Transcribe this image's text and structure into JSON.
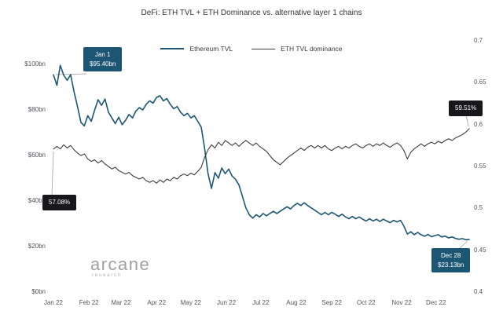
{
  "title": "DeFi: ETH TVL + ETH Dominance vs. alternative layer 1 chains",
  "watermark": {
    "brand": "arcane",
    "sub": "research"
  },
  "annotations": {
    "start_tvl": {
      "line1": "Jan 1",
      "line2": "$95.40bn",
      "color": "#1d5673"
    },
    "start_dominance": {
      "line1": "57.08%",
      "color": "#17171c"
    },
    "end_dominance": {
      "line1": "59.51%",
      "color": "#17171c"
    },
    "end_tvl": {
      "line1": "Dec 28",
      "line2": "$23.13bn",
      "color": "#1d5673"
    }
  },
  "chart_data": {
    "type": "line",
    "title": "DeFi: ETH TVL + ETH Dominance vs. alternative layer 1 chains",
    "grid": false,
    "legend_position": "top",
    "x_unit": "day of 2022 (points every 3 days, day 0 = Jan 1)",
    "x_ticks": [
      {
        "label": "Jan 22",
        "day": 0
      },
      {
        "label": "Feb 22",
        "day": 31
      },
      {
        "label": "Mar 22",
        "day": 59
      },
      {
        "label": "Apr 22",
        "day": 90
      },
      {
        "label": "May 22",
        "day": 120
      },
      {
        "label": "Jun 22",
        "day": 151
      },
      {
        "label": "Jul 22",
        "day": 181
      },
      {
        "label": "Aug 22",
        "day": 212
      },
      {
        "label": "Sep 22",
        "day": 243
      },
      {
        "label": "Oct 22",
        "day": 273
      },
      {
        "label": "Nov 22",
        "day": 304
      },
      {
        "label": "Dec 22",
        "day": 334
      }
    ],
    "y_left": {
      "lim": [
        0,
        100
      ],
      "ticks": [
        {
          "label": "$100bn",
          "value": 100
        },
        {
          "label": "$80bn",
          "value": 80
        },
        {
          "label": "$60bn",
          "value": 60
        },
        {
          "label": "$40bn",
          "value": 40
        },
        {
          "label": "$20bn",
          "value": 20
        },
        {
          "label": "$0bn",
          "value": 0
        }
      ]
    },
    "y_right": {
      "lim": [
        0.4,
        0.7
      ],
      "ticks": [
        {
          "label": "0.7",
          "value": 0.7
        },
        {
          "label": "0.65",
          "value": 0.65
        },
        {
          "label": "0.6",
          "value": 0.6
        },
        {
          "label": "0.55",
          "value": 0.55
        },
        {
          "label": "0.5",
          "value": 0.5
        },
        {
          "label": "0.45",
          "value": 0.45
        },
        {
          "label": "0.4",
          "value": 0.4
        }
      ]
    },
    "series": [
      {
        "name": "Ethereum TVL",
        "axis": "left",
        "color": "#1d5673",
        "x_step_days": 3,
        "values": [
          95.4,
          90.8,
          99.6,
          95.2,
          93.0,
          95.5,
          88.0,
          81.5,
          74.5,
          73.0,
          77.5,
          75.0,
          80.0,
          84.5,
          82.0,
          84.8,
          79.0,
          76.5,
          74.0,
          76.8,
          73.5,
          75.5,
          78.0,
          76.5,
          79.5,
          81.0,
          80.0,
          82.5,
          84.0,
          83.0,
          85.5,
          86.2,
          84.0,
          85.0,
          82.5,
          80.5,
          81.5,
          79.0,
          77.5,
          78.5,
          76.5,
          77.5,
          75.0,
          72.5,
          63.0,
          52.0,
          45.5,
          52.5,
          50.0,
          54.5,
          52.0,
          54.0,
          51.0,
          49.5,
          47.0,
          42.0,
          37.0,
          34.0,
          32.5,
          34.0,
          33.0,
          34.5,
          33.5,
          34.5,
          35.5,
          34.5,
          35.5,
          36.5,
          37.5,
          36.5,
          38.0,
          39.0,
          38.0,
          39.2,
          38.0,
          37.0,
          36.0,
          35.0,
          34.0,
          35.0,
          34.0,
          35.0,
          34.2,
          33.2,
          34.2,
          33.0,
          32.2,
          33.2,
          32.2,
          33.0,
          32.0,
          31.2,
          32.2,
          31.2,
          32.0,
          31.0,
          32.0,
          31.2,
          30.5,
          31.5,
          30.8,
          31.5,
          29.0,
          25.5,
          26.5,
          25.2,
          26.2,
          25.2,
          24.5,
          25.3,
          24.3,
          24.8,
          25.2,
          24.2,
          24.6,
          23.8,
          24.2,
          23.6,
          23.2,
          23.5,
          23.0,
          23.13
        ]
      },
      {
        "name": "ETH TVL dominance",
        "axis": "right",
        "color": "#3d3d3d",
        "x_step_days": 3,
        "values": [
          0.5708,
          0.574,
          0.571,
          0.576,
          0.572,
          0.575,
          0.57,
          0.566,
          0.563,
          0.565,
          0.559,
          0.556,
          0.558,
          0.554,
          0.557,
          0.553,
          0.55,
          0.547,
          0.549,
          0.545,
          0.543,
          0.541,
          0.543,
          0.539,
          0.537,
          0.535,
          0.537,
          0.533,
          0.531,
          0.533,
          0.53,
          0.534,
          0.531,
          0.535,
          0.533,
          0.537,
          0.535,
          0.539,
          0.541,
          0.539,
          0.542,
          0.54,
          0.544,
          0.549,
          0.561,
          0.57,
          0.576,
          0.572,
          0.579,
          0.575,
          0.581,
          0.578,
          0.575,
          0.578,
          0.574,
          0.578,
          0.581,
          0.578,
          0.575,
          0.578,
          0.574,
          0.571,
          0.568,
          0.563,
          0.558,
          0.555,
          0.552,
          0.556,
          0.56,
          0.563,
          0.566,
          0.569,
          0.572,
          0.569,
          0.573,
          0.575,
          0.572,
          0.575,
          0.572,
          0.575,
          0.571,
          0.569,
          0.572,
          0.574,
          0.571,
          0.574,
          0.572,
          0.575,
          0.577,
          0.574,
          0.572,
          0.575,
          0.577,
          0.574,
          0.577,
          0.575,
          0.578,
          0.575,
          0.573,
          0.576,
          0.578,
          0.575,
          0.569,
          0.559,
          0.567,
          0.571,
          0.574,
          0.577,
          0.574,
          0.577,
          0.579,
          0.577,
          0.58,
          0.578,
          0.581,
          0.583,
          0.581,
          0.584,
          0.586,
          0.588,
          0.591,
          0.5951
        ]
      }
    ]
  }
}
